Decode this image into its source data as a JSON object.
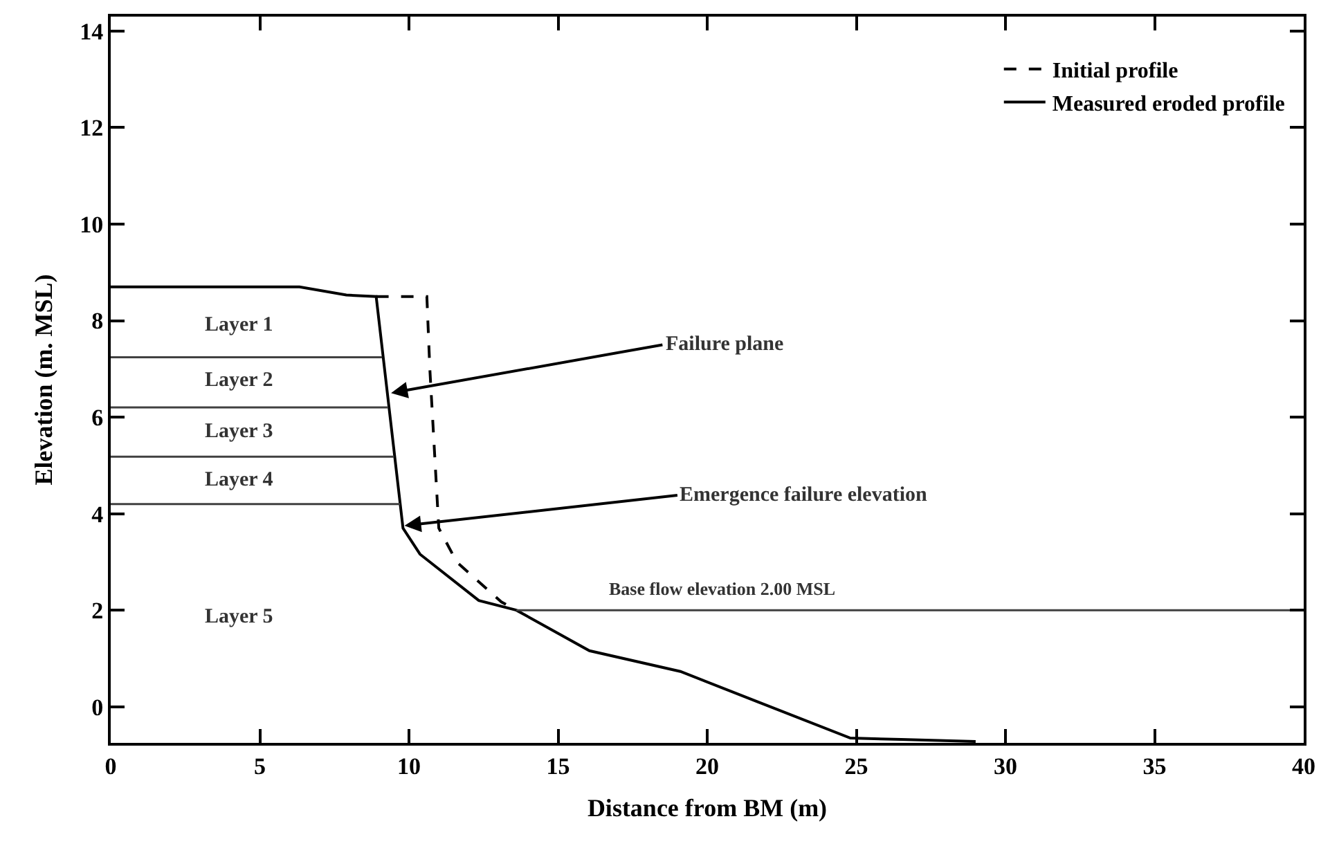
{
  "chart_data": {
    "type": "line",
    "xlabel": "Distance from BM (m)",
    "ylabel": "Elevation (m. MSL)",
    "xlim": [
      0,
      40
    ],
    "xticks": [
      0,
      5,
      10,
      15,
      20,
      25,
      30,
      35,
      40
    ],
    "ylim": [
      -0.75,
      14.3
    ],
    "yticks": [
      0,
      2,
      4,
      6,
      8,
      10,
      12,
      14
    ],
    "grid": false,
    "legend": "top right",
    "marker": "none",
    "series": [
      {
        "name": "Initial profile",
        "color": "#000000",
        "line_style": "dashed",
        "x": [
          8.9,
          10.6,
          10.7,
          11.0,
          11.6,
          13.1,
          13.6
        ],
        "values": [
          8.5,
          8.5,
          7.0,
          3.7,
          3.0,
          2.17,
          2.0
        ]
      },
      {
        "name": "Measured eroded profile",
        "color": "#000000",
        "line_style": "solid",
        "x": [
          0,
          6.33,
          7.9,
          8.9,
          9.8,
          10.37,
          12.34,
          13.6,
          16.05,
          19.1,
          21.9,
          24.8,
          26.5,
          29.0
        ],
        "values": [
          8.7,
          8.7,
          8.53,
          8.5,
          3.7,
          3.16,
          2.2,
          2.0,
          1.16,
          0.73,
          0.05,
          -0.65,
          -0.68,
          -0.72
        ]
      },
      {
        "color": "#404040",
        "line_style": "solid",
        "x": [
          13.6,
          40
        ],
        "values": [
          2.0,
          2.0
        ]
      },
      {
        "color": "#404040",
        "line_style": "solid",
        "x": [
          0,
          9.1
        ],
        "values": [
          7.24,
          7.24
        ]
      },
      {
        "color": "#404040",
        "line_style": "solid",
        "x": [
          0,
          9.3
        ],
        "values": [
          6.2,
          6.2
        ]
      },
      {
        "color": "#404040",
        "line_style": "solid",
        "x": [
          0,
          9.5
        ],
        "values": [
          5.18,
          5.18
        ]
      },
      {
        "color": "#404040",
        "line_style": "solid",
        "x": [
          0,
          9.7
        ],
        "values": [
          4.2,
          4.2
        ]
      }
    ],
    "annotations": [
      "Layer 1",
      "Layer 2",
      "Layer 3",
      "Layer 4",
      "Layer 5",
      {
        "text": "Failure plane",
        "x": 9.4,
        "y": 6.5
      },
      {
        "text": "Emergence failure elevation",
        "x": 9.85,
        "y": 3.75
      },
      {
        "text": "Base flow elevation 2.00 MSL",
        "x": 20.5,
        "y": 2.0
      }
    ]
  }
}
